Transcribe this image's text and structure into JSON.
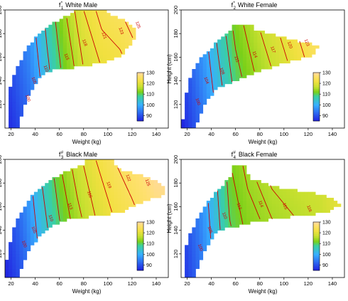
{
  "figure": {
    "xlabel": "Weight (kg)",
    "ylabel": "Height (cm)",
    "colorbar": {
      "range": [
        85,
        130
      ],
      "ticks": [
        90,
        100,
        110,
        120,
        130
      ],
      "stops": [
        {
          "v": 85,
          "color": "#2020e0"
        },
        {
          "v": 100,
          "color": "#38b0ff"
        },
        {
          "v": 108,
          "color": "#3ad0a0"
        },
        {
          "v": 112,
          "color": "#7ad018"
        },
        {
          "v": 117,
          "color": "#c8e030"
        },
        {
          "v": 122,
          "color": "#f2e040"
        },
        {
          "v": 127,
          "color": "#ffe070"
        },
        {
          "v": 130,
          "color": "#ffd8a8"
        }
      ]
    },
    "contour_color": "#cc0000"
  },
  "chart_data": [
    {
      "type": "heatmap",
      "title_symbol": "f",
      "title_sub": "1",
      "title_sup": "*",
      "title": "White Male",
      "xlim": [
        15,
        150
      ],
      "ylim": [
        100,
        200
      ],
      "xticks": [
        20,
        40,
        60,
        80,
        100,
        120,
        140
      ],
      "yticks": [
        120,
        140,
        160,
        180,
        200
      ],
      "value_model": {
        "at_weight": [
          15,
          35,
          50,
          65,
          80,
          95,
          110,
          125,
          140
        ],
        "value": [
          88,
          95,
          104,
          112,
          118,
          121,
          122,
          124,
          126
        ],
        "height_effect_per_cm": 0.06
      },
      "region_rows": [
        {
          "h": 103,
          "w": [
            17,
            26
          ]
        },
        {
          "h": 110,
          "w": [
            17,
            29
          ]
        },
        {
          "h": 118,
          "w": [
            17,
            31
          ]
        },
        {
          "h": 125,
          "w": [
            18,
            34
          ]
        },
        {
          "h": 133,
          "w": [
            19,
            37
          ]
        },
        {
          "h": 140,
          "w": [
            21,
            42
          ]
        },
        {
          "h": 148,
          "w": [
            24,
            50
          ]
        },
        {
          "h": 155,
          "w": [
            27,
            96
          ]
        },
        {
          "h": 162,
          "w": [
            30,
            112
          ]
        },
        {
          "h": 170,
          "w": [
            35,
            118
          ]
        },
        {
          "h": 177,
          "w": [
            40,
            122
          ]
        },
        {
          "h": 184,
          "w": [
            48,
            124
          ]
        },
        {
          "h": 191,
          "w": [
            58,
            114
          ]
        },
        {
          "h": 197,
          "w": [
            72,
            100
          ]
        }
      ],
      "contour_labels": [
        {
          "w": 33,
          "h": 125,
          "text": "100"
        },
        {
          "w": 38,
          "h": 140,
          "text": "105"
        },
        {
          "w": 48,
          "h": 150,
          "text": "110"
        },
        {
          "w": 65,
          "h": 160,
          "text": "115"
        },
        {
          "w": 80,
          "h": 172,
          "text": "118"
        },
        {
          "w": 96,
          "h": 178,
          "text": "121"
        },
        {
          "w": 110,
          "h": 182,
          "text": "123"
        },
        {
          "w": 124,
          "h": 187,
          "text": "125"
        }
      ]
    },
    {
      "type": "heatmap",
      "title_symbol": "f",
      "title_sub": "2",
      "title_sup": "*",
      "title": "White Female",
      "xlim": [
        15,
        150
      ],
      "ylim": [
        100,
        200
      ],
      "xticks": [
        20,
        40,
        60,
        80,
        100,
        120,
        140
      ],
      "yticks": [
        120,
        140,
        160,
        180,
        200
      ],
      "value_model": {
        "at_weight": [
          15,
          30,
          45,
          60,
          75,
          90,
          105,
          120,
          140
        ],
        "value": [
          88,
          95,
          103,
          110,
          114,
          117,
          120,
          123,
          126
        ],
        "height_effect_per_cm": 0.06
      },
      "region_rows": [
        {
          "h": 103,
          "w": [
            16,
            28
          ]
        },
        {
          "h": 110,
          "w": [
            17,
            31
          ]
        },
        {
          "h": 118,
          "w": [
            17,
            34
          ]
        },
        {
          "h": 125,
          "w": [
            18,
            38
          ]
        },
        {
          "h": 133,
          "w": [
            20,
            44
          ]
        },
        {
          "h": 140,
          "w": [
            22,
            60
          ]
        },
        {
          "h": 148,
          "w": [
            25,
            80
          ]
        },
        {
          "h": 155,
          "w": [
            28,
            100
          ]
        },
        {
          "h": 162,
          "w": [
            34,
            126
          ]
        },
        {
          "h": 170,
          "w": [
            42,
            128
          ]
        },
        {
          "h": 177,
          "w": [
            50,
            98
          ]
        },
        {
          "h": 184,
          "w": [
            58,
            74
          ]
        }
      ],
      "contour_labels": [
        {
          "w": 28,
          "h": 122,
          "text": "100"
        },
        {
          "w": 35,
          "h": 140,
          "text": "104"
        },
        {
          "w": 48,
          "h": 148,
          "text": "108"
        },
        {
          "w": 60,
          "h": 158,
          "text": "111"
        },
        {
          "w": 75,
          "h": 162,
          "text": "114"
        },
        {
          "w": 90,
          "h": 166,
          "text": "117"
        },
        {
          "w": 104,
          "h": 170,
          "text": "120"
        },
        {
          "w": 118,
          "h": 172,
          "text": "123"
        }
      ]
    },
    {
      "type": "heatmap",
      "title_symbol": "f",
      "title_sub": "3",
      "title_sup": "#",
      "title": "Black Male",
      "xlim": [
        15,
        150
      ],
      "ylim": [
        100,
        200
      ],
      "xticks": [
        20,
        40,
        60,
        80,
        100,
        120,
        140
      ],
      "yticks": [
        120,
        140,
        160,
        180,
        200
      ],
      "value_model": {
        "at_weight": [
          15,
          30,
          45,
          60,
          75,
          90,
          105,
          120,
          140
        ],
        "value": [
          88,
          94,
          103,
          110,
          115,
          119,
          122,
          124,
          127
        ],
        "height_effect_per_cm": 0.06
      },
      "region_rows": [
        {
          "h": 103,
          "w": [
            16,
            27
          ]
        },
        {
          "h": 110,
          "w": [
            16,
            30
          ]
        },
        {
          "h": 118,
          "w": [
            17,
            32
          ]
        },
        {
          "h": 125,
          "w": [
            18,
            36
          ]
        },
        {
          "h": 133,
          "w": [
            20,
            42
          ]
        },
        {
          "h": 140,
          "w": [
            22,
            48
          ]
        },
        {
          "h": 148,
          "w": [
            25,
            62
          ]
        },
        {
          "h": 155,
          "w": [
            28,
            110
          ]
        },
        {
          "h": 162,
          "w": [
            32,
            124
          ]
        },
        {
          "h": 170,
          "w": [
            38,
            146
          ]
        },
        {
          "h": 177,
          "w": [
            45,
            146
          ]
        },
        {
          "h": 184,
          "w": [
            55,
            136
          ]
        },
        {
          "h": 191,
          "w": [
            68,
            112
          ]
        },
        {
          "h": 197,
          "w": [
            82,
            104
          ]
        }
      ],
      "contour_labels": [
        {
          "w": 30,
          "h": 128,
          "text": "100"
        },
        {
          "w": 38,
          "h": 140,
          "text": "105"
        },
        {
          "w": 52,
          "h": 150,
          "text": "110"
        },
        {
          "w": 68,
          "h": 160,
          "text": "113"
        },
        {
          "w": 84,
          "h": 170,
          "text": "116"
        },
        {
          "w": 100,
          "h": 178,
          "text": "119"
        },
        {
          "w": 116,
          "h": 184,
          "text": "122"
        },
        {
          "w": 132,
          "h": 180,
          "text": "125"
        }
      ]
    },
    {
      "type": "heatmap",
      "title_symbol": "f",
      "title_sub": "4",
      "title_sup": "#",
      "title": "Black Female",
      "xlim": [
        15,
        150
      ],
      "ylim": [
        100,
        200
      ],
      "xticks": [
        20,
        40,
        60,
        80,
        100,
        120,
        140
      ],
      "yticks": [
        120,
        140,
        160,
        180,
        200
      ],
      "value_model": {
        "at_weight": [
          15,
          30,
          45,
          55,
          70,
          90,
          110,
          130,
          145
        ],
        "value": [
          88,
          95,
          104,
          110,
          113,
          115,
          116,
          117,
          120
        ],
        "height_effect_per_cm": 0.04
      },
      "region_rows": [
        {
          "h": 103,
          "w": [
            17,
            27
          ]
        },
        {
          "h": 110,
          "w": [
            17,
            30
          ]
        },
        {
          "h": 118,
          "w": [
            18,
            33
          ]
        },
        {
          "h": 125,
          "w": [
            19,
            36
          ]
        },
        {
          "h": 133,
          "w": [
            21,
            40
          ]
        },
        {
          "h": 140,
          "w": [
            24,
            46
          ]
        },
        {
          "h": 148,
          "w": [
            28,
            80
          ]
        },
        {
          "h": 155,
          "w": [
            32,
            136
          ]
        },
        {
          "h": 162,
          "w": [
            36,
            148
          ]
        },
        {
          "h": 170,
          "w": [
            42,
            132
          ]
        },
        {
          "h": 177,
          "w": [
            48,
            92
          ]
        },
        {
          "h": 184,
          "w": [
            55,
            72
          ]
        },
        {
          "h": 191,
          "w": [
            58,
            68
          ]
        }
      ],
      "contour_labels": [
        {
          "w": 30,
          "h": 125,
          "text": "100"
        },
        {
          "w": 38,
          "h": 140,
          "text": "105"
        },
        {
          "w": 50,
          "h": 152,
          "text": "110"
        },
        {
          "w": 62,
          "h": 160,
          "text": "112"
        },
        {
          "w": 80,
          "h": 162,
          "text": "114"
        },
        {
          "w": 100,
          "h": 160,
          "text": "115"
        },
        {
          "w": 120,
          "h": 158,
          "text": "116"
        }
      ]
    }
  ]
}
